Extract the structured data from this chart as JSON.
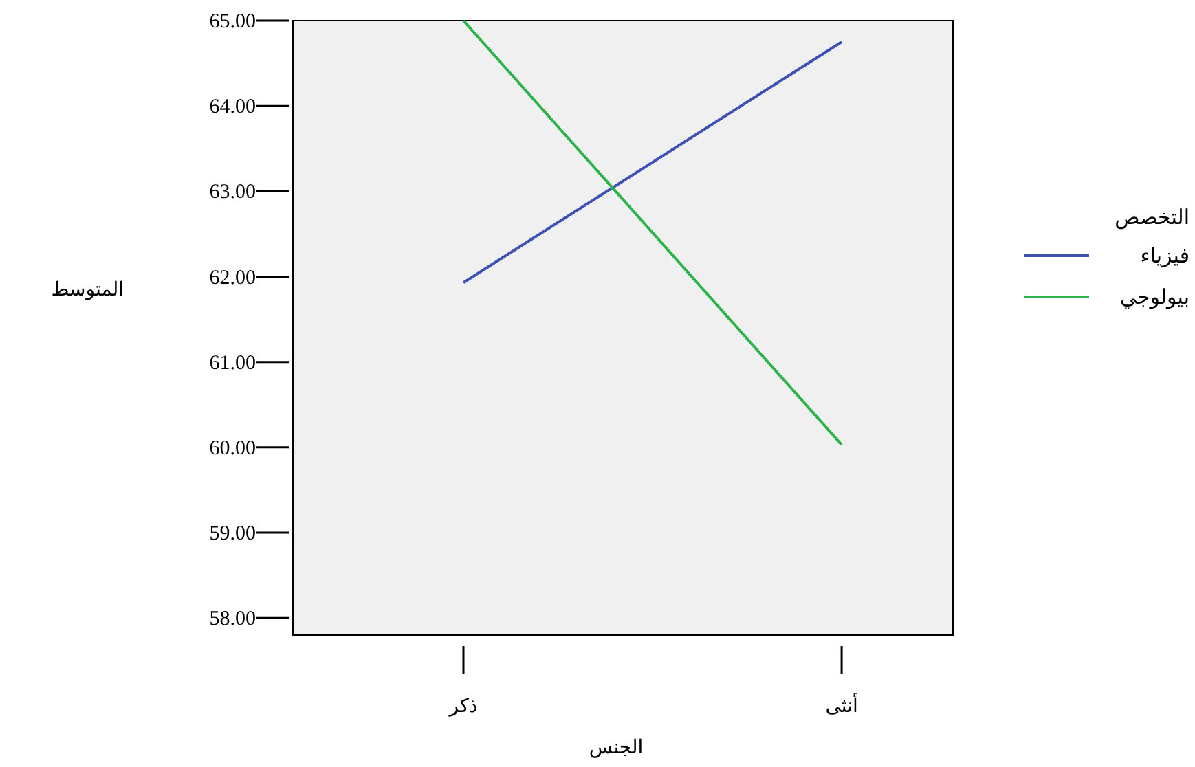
{
  "chart_data": {
    "type": "line",
    "xlabel": "الجنس",
    "ylabel": "المتوسط",
    "legend_title": "التخصص",
    "legend": "right",
    "categories": [
      "ذكر",
      "أنثى"
    ],
    "ylim": [
      57.8,
      65.0
    ],
    "yticks": [
      {
        "value": 58,
        "label": "58.00"
      },
      {
        "value": 59,
        "label": "59.00"
      },
      {
        "value": 60,
        "label": "60.00"
      },
      {
        "value": 61,
        "label": "61.00"
      },
      {
        "value": 62,
        "label": "62.00"
      },
      {
        "value": 63,
        "label": "63.00"
      },
      {
        "value": 64,
        "label": "64.00"
      },
      {
        "value": 65,
        "label": "65.00"
      }
    ],
    "series": [
      {
        "name": "فيزياء",
        "color": "#3f51b5",
        "values": [
          61.93,
          64.75
        ]
      },
      {
        "name": "بيولوجي",
        "color": "#2db34a",
        "values": [
          65.0,
          60.03
        ]
      }
    ]
  }
}
